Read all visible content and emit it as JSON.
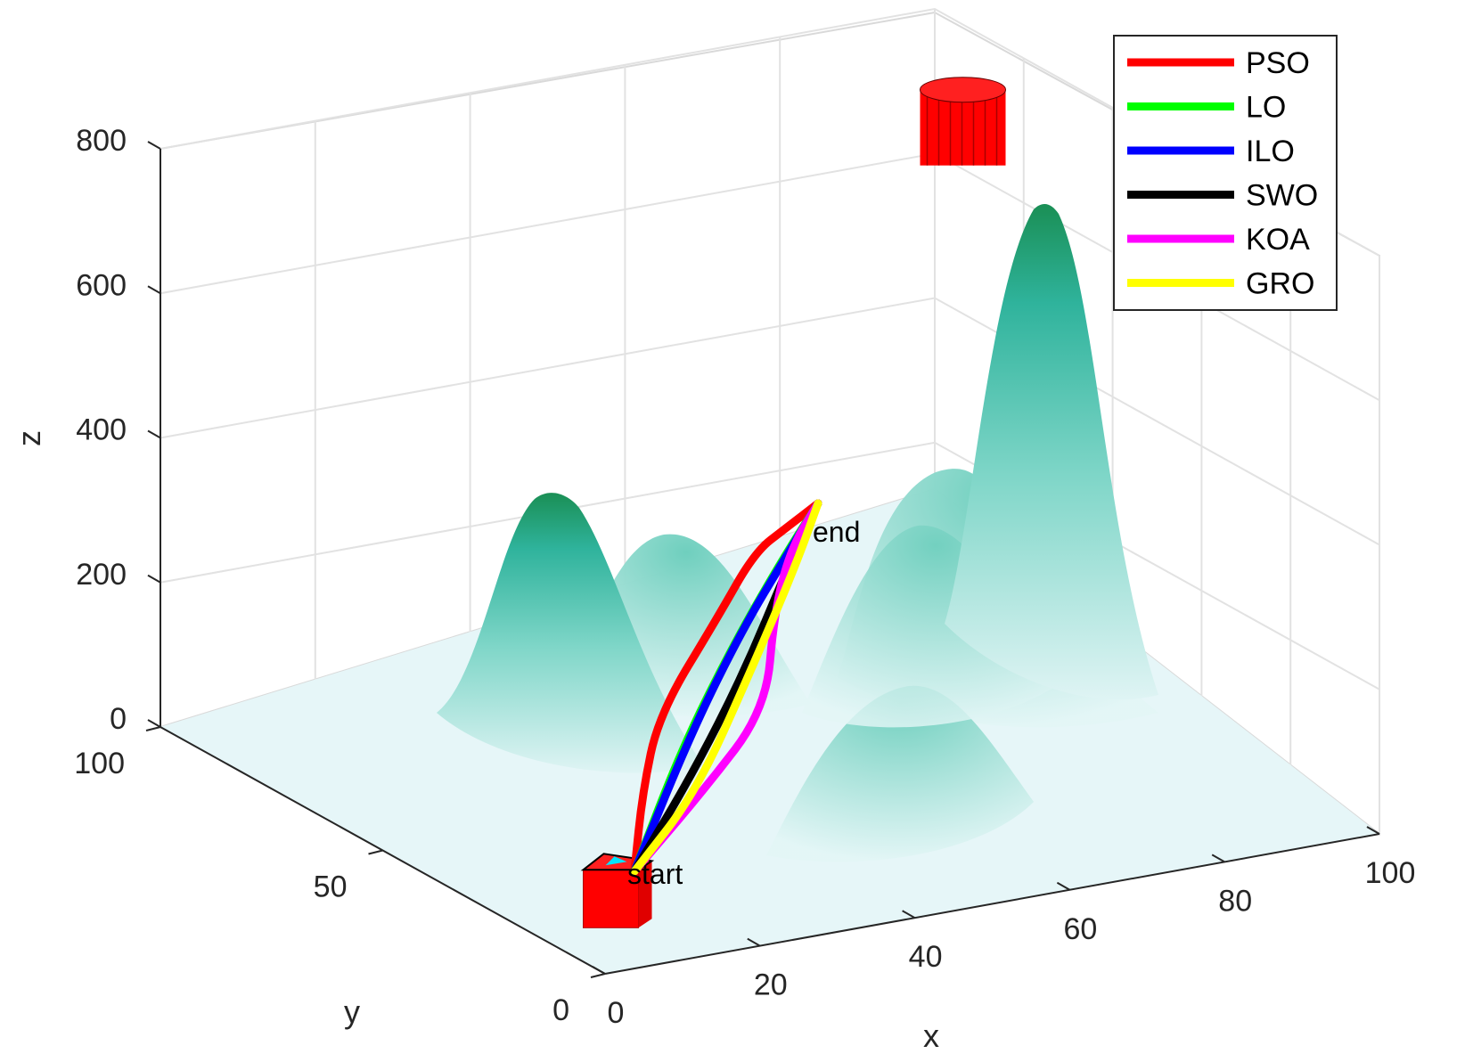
{
  "chart_data": {
    "type": "line",
    "subtype": "3d-path-over-terrain",
    "title": "",
    "xlabel": "x",
    "ylabel": "y",
    "zlabel": "z",
    "xlim": [
      0,
      100
    ],
    "ylim": [
      0,
      100
    ],
    "zlim": [
      0,
      800
    ],
    "x_ticks": [
      "0",
      "20",
      "40",
      "60",
      "80",
      "100"
    ],
    "y_ticks": [
      "0",
      "50",
      "100"
    ],
    "z_ticks": [
      "0",
      "200",
      "400",
      "600",
      "800"
    ],
    "grid": true,
    "legend_position": "top-right",
    "terrain_color": "#1fae96",
    "markers": [
      {
        "label": "start",
        "x": 5,
        "y": 5,
        "z": 0,
        "color": "#ff0000"
      },
      {
        "label": "end",
        "x": 95,
        "y": 95,
        "z": 100,
        "color": "#ff0000"
      }
    ],
    "series": [
      {
        "name": "PSO",
        "color": "#ff0000",
        "points": [
          [
            5,
            5,
            0
          ],
          [
            2,
            25,
            10
          ],
          [
            5,
            45,
            20
          ],
          [
            35,
            70,
            25
          ],
          [
            55,
            85,
            60
          ],
          [
            75,
            90,
            80
          ],
          [
            95,
            95,
            100
          ]
        ]
      },
      {
        "name": "LO",
        "color": "#00ff00",
        "points": [
          [
            5,
            5,
            0
          ],
          [
            25,
            35,
            30
          ],
          [
            50,
            60,
            60
          ],
          [
            75,
            80,
            90
          ],
          [
            95,
            95,
            100
          ]
        ]
      },
      {
        "name": "ILO",
        "color": "#0000ff",
        "points": [
          [
            5,
            5,
            0
          ],
          [
            30,
            40,
            25
          ],
          [
            55,
            65,
            55
          ],
          [
            78,
            82,
            85
          ],
          [
            95,
            95,
            100
          ]
        ]
      },
      {
        "name": "SWO",
        "color": "#000000",
        "points": [
          [
            5,
            5,
            0
          ],
          [
            35,
            30,
            10
          ],
          [
            60,
            55,
            30
          ],
          [
            80,
            80,
            70
          ],
          [
            95,
            95,
            100
          ]
        ]
      },
      {
        "name": "KOA",
        "color": "#ff00ff",
        "points": [
          [
            5,
            5,
            0
          ],
          [
            45,
            25,
            20
          ],
          [
            80,
            45,
            40
          ],
          [
            75,
            70,
            45
          ],
          [
            80,
            85,
            70
          ],
          [
            95,
            95,
            100
          ]
        ]
      },
      {
        "name": "GRO",
        "color": "#ffff00",
        "points": [
          [
            5,
            5,
            0
          ],
          [
            40,
            25,
            15
          ],
          [
            65,
            55,
            40
          ],
          [
            85,
            80,
            70
          ],
          [
            95,
            95,
            100
          ]
        ]
      }
    ]
  }
}
